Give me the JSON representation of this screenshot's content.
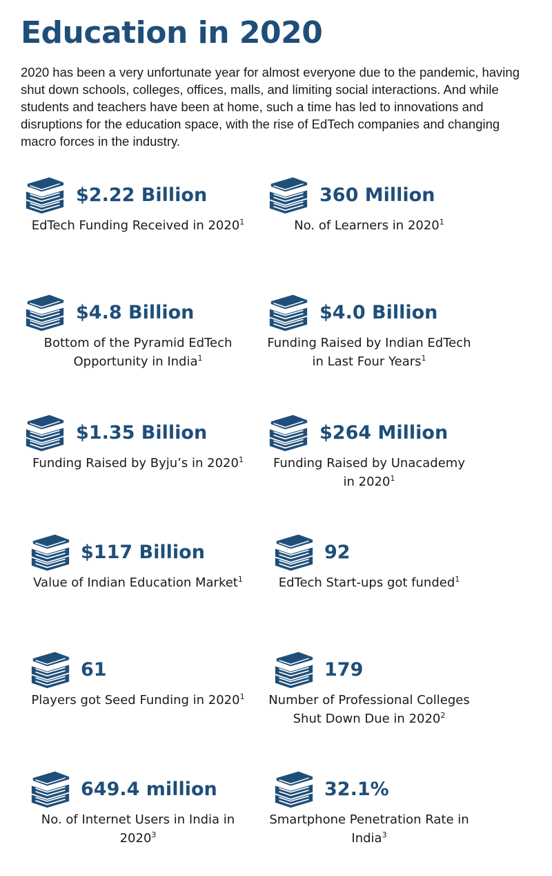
{
  "page": {
    "title": "Education in 2020",
    "intro": "2020 has been a very unfortunate year for almost everyone due to the pandemic, having shut down schools, colleges, offices, malls, and limiting social interactions. And while students and teachers have been at home, such a time has led to innovations and disruptions for the education space, with the rise of EdTech companies and changing macro forces in the industry."
  },
  "theme": {
    "accent": "#1f4e79"
  },
  "icon": "books-stack-icon",
  "stats": [
    {
      "value": "$2.22 Billion",
      "label": "EdTech Funding Received in 2020",
      "ref": "1"
    },
    {
      "value": "360 Million",
      "label": "No. of Learners in 2020",
      "ref": "1"
    },
    {
      "value": "$4.8 Billion",
      "label": "Bottom of the Pyramid EdTech\nOpportunity in India",
      "ref": "1"
    },
    {
      "value": "$4.0 Billion",
      "label": "Funding Raised by Indian EdTech\nin Last Four Years",
      "ref": "1"
    },
    {
      "value": "$1.35 Billion",
      "label": "Funding Raised by Byju’s in 2020",
      "ref": "1"
    },
    {
      "value": "$264 Million",
      "label": "Funding Raised by Unacademy\nin 2020",
      "ref": "1"
    },
    {
      "value": "$117 Billion",
      "label": "Value of Indian Education Market",
      "ref": "1"
    },
    {
      "value": "92",
      "label": "EdTech Start-ups got funded",
      "ref": "1"
    },
    {
      "value": "61",
      "label": "Players got Seed Funding in 2020",
      "ref": "1"
    },
    {
      "value": "179",
      "label": "Number of Professional Colleges\nShut Down Due in 2020",
      "ref": "2"
    },
    {
      "value": "649.4 million",
      "label": "No. of Internet Users in India in\n2020",
      "ref": "3"
    },
    {
      "value": "32.1%",
      "label": "Smartphone Penetration Rate in\nIndia",
      "ref": "3"
    }
  ]
}
